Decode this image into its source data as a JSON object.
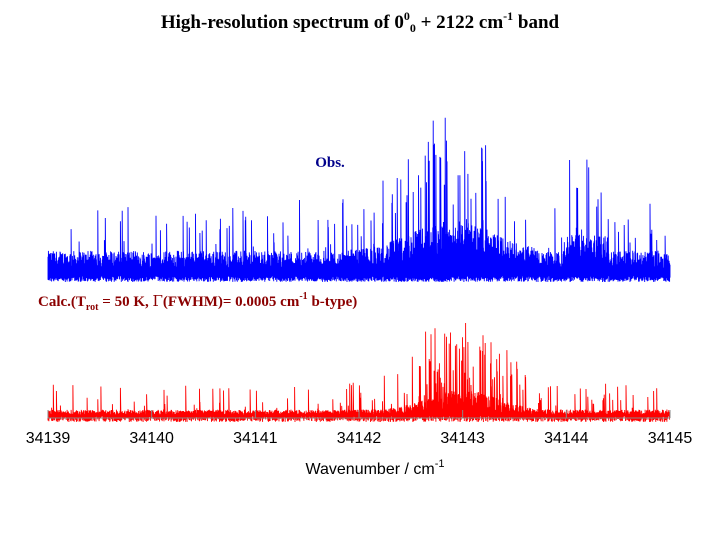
{
  "chart_data": {
    "type": "line",
    "title": {
      "prefix": "High-resolution spectrum of 0",
      "sup1": "0",
      "sub1": "0",
      "mid": " + 2122 cm",
      "sup2": "-1",
      "suffix": " band"
    },
    "xlabel": {
      "main": "Wavenumber / cm",
      "sup": "-1"
    },
    "xlim": [
      34139,
      34145
    ],
    "x_ticks": [
      "34139",
      "34140",
      "34141",
      "34142",
      "34143",
      "34144",
      "34145"
    ],
    "series": [
      {
        "name": "Obs.",
        "color": "#0000ff",
        "note": "observed spectrum: dense rotational lines on a noisy baseline, stronger region ~34142-34143.6, features near 34144.2"
      },
      {
        "name": "Calc.",
        "color": "#ff0000",
        "label_parts": {
          "a": "Calc.(T",
          "sub": "rot",
          "b": " = 50 K, ",
          "gamma": "Γ",
          "c": "(FWHM)= 0.0005 cm",
          "sup": "-1",
          "d": " b-type)"
        },
        "note": "calculated b-type spectrum: dense stick lines, strongest cluster ~34142.2-34143.6"
      }
    ],
    "grid": false,
    "legend": "none"
  }
}
